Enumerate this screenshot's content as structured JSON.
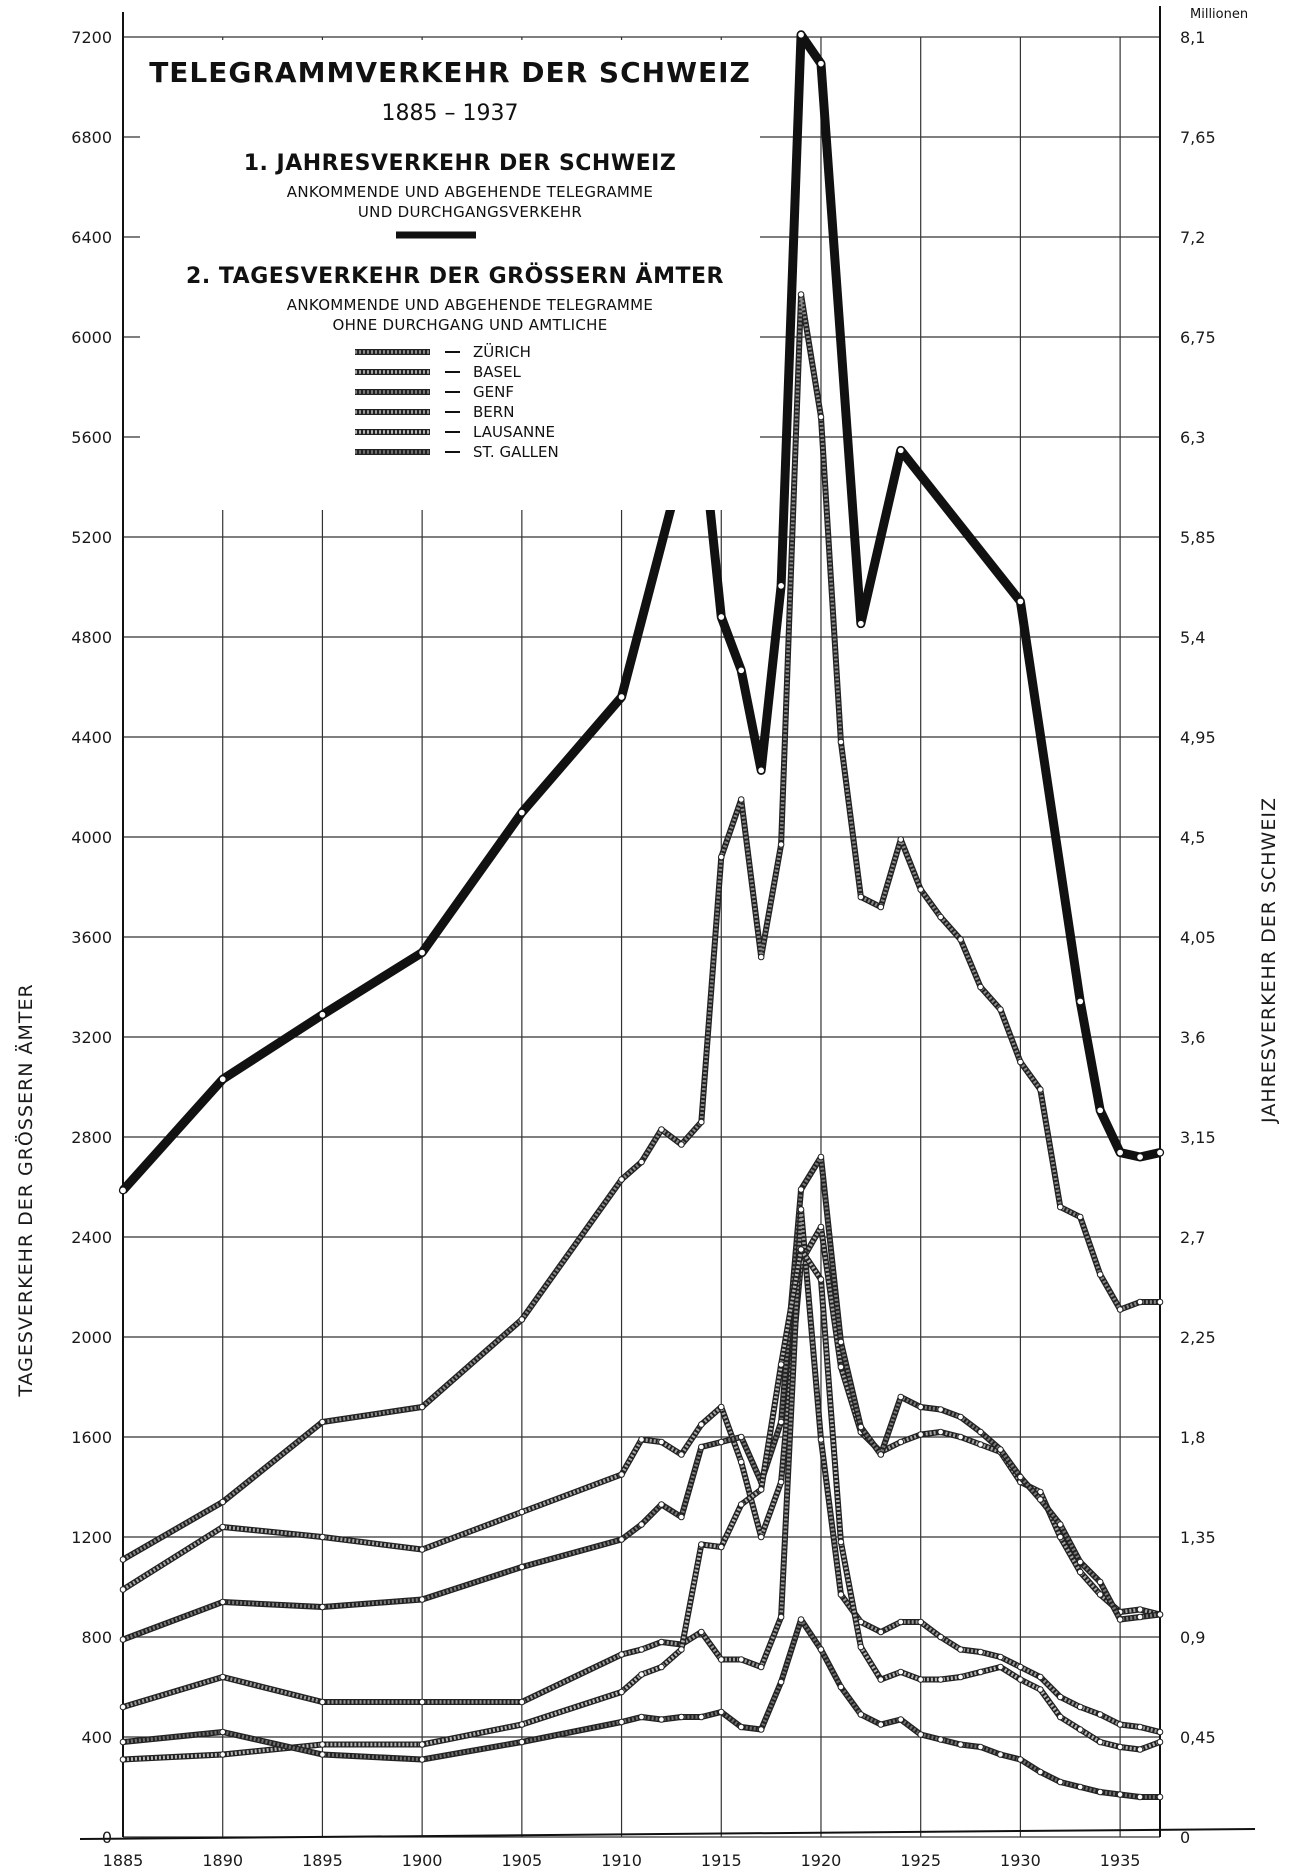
{
  "chart_data": {
    "type": "line",
    "title": "TELEGRAMMVERKEHR DER SCHWEIZ",
    "subtitle": "1885 – 1937",
    "heading_1": "1. JAHRESVERKEHR DER SCHWEIZ",
    "heading_1_desc_1": "ANKOMMENDE UND ABGEHENDE TELEGRAMME",
    "heading_1_desc_2": "UND DURCHGANGSVERKEHR",
    "heading_2": "2. TAGESVERKEHR DER GRÖSSERN ÄMTER",
    "heading_2_desc_1": "ANKOMMENDE UND ABGEHENDE TELEGRAMME",
    "heading_2_desc_2": "OHNE DURCHGANG UND AMTLICHE",
    "ylabel": "TAGESVERKEHR DER GRÖSSERN ÄMTER",
    "y2label": "JAHRESVERKEHR DER SCHWEIZ",
    "y2unit": "Millionen",
    "xlim": [
      1885,
      1937
    ],
    "ylim": [
      0,
      7200
    ],
    "y2lim": [
      0,
      8.1
    ],
    "grid": true,
    "x_ticks": [
      "1885",
      "1890",
      "1895",
      "1900",
      "1905",
      "1910",
      "1915",
      "1920",
      "1925",
      "1930",
      "1935"
    ],
    "y_ticks": [
      "0",
      "400",
      "800",
      "1200",
      "1600",
      "2000",
      "2400",
      "2800",
      "3200",
      "3600",
      "4000",
      "4400",
      "4800",
      "5200",
      "5600",
      "6000",
      "6400",
      "6800",
      "7200"
    ],
    "y2_ticks": [
      "0",
      "0,45",
      "0,9",
      "1,35",
      "1,8",
      "2,25",
      "2,7",
      "3,15",
      "3,6",
      "4,05",
      "4,5",
      "4,95",
      "5,4",
      "5,85",
      "6,3",
      "6,75",
      "7,2",
      "7,65",
      "8,1"
    ],
    "annual": {
      "name": "JAHRESVERKEHR DER SCHWEIZ",
      "axis": "right",
      "unit": "Millionen",
      "color": "#111111",
      "x": [
        1885,
        1890,
        1895,
        1900,
        1905,
        1910,
        1913,
        1914,
        1915,
        1916,
        1917,
        1918,
        1919,
        1920,
        1922,
        1924,
        1930,
        1933,
        1934,
        1935,
        1936,
        1937
      ],
      "y": [
        2.91,
        3.41,
        3.7,
        3.98,
        4.61,
        5.13,
        6.16,
        6.36,
        5.49,
        5.25,
        4.8,
        5.63,
        8.11,
        7.98,
        5.46,
        6.24,
        5.56,
        3.76,
        3.27,
        3.08,
        3.06,
        3.08
      ]
    },
    "series": [
      {
        "name": "ZÜRICH",
        "x": [
          1885,
          1890,
          1895,
          1900,
          1905,
          1910,
          1911,
          1912,
          1913,
          1914,
          1915,
          1916,
          1917,
          1918,
          1919,
          1920,
          1921,
          1922,
          1923,
          1924,
          1925,
          1926,
          1927,
          1928,
          1929,
          1930,
          1931,
          1932,
          1933,
          1934,
          1935,
          1936,
          1937
        ],
        "y": [
          1110,
          1340,
          1660,
          1720,
          2070,
          2630,
          2700,
          2830,
          2770,
          2860,
          3920,
          4150,
          3520,
          3970,
          6170,
          5680,
          4380,
          3760,
          3720,
          3990,
          3790,
          3680,
          3590,
          3400,
          3310,
          3100,
          2990,
          2520,
          2480,
          2250,
          2110,
          2140,
          2140
        ]
      },
      {
        "name": "BASEL",
        "x": [
          1885,
          1890,
          1895,
          1900,
          1905,
          1910,
          1911,
          1912,
          1913,
          1914,
          1915,
          1916,
          1917,
          1918,
          1919,
          1920,
          1921,
          1922,
          1923,
          1924,
          1925,
          1926,
          1927,
          1928,
          1929,
          1930,
          1931,
          1932,
          1933,
          1934,
          1935,
          1936,
          1937
        ],
        "y": [
          990,
          1240,
          1200,
          1150,
          1300,
          1450,
          1590,
          1580,
          1530,
          1650,
          1720,
          1500,
          1200,
          1420,
          2300,
          2440,
          1880,
          1620,
          1540,
          1580,
          1610,
          1620,
          1600,
          1570,
          1540,
          1420,
          1380,
          1200,
          1060,
          970,
          900,
          910,
          890
        ]
      },
      {
        "name": "GENF",
        "x": [
          1885,
          1890,
          1895,
          1900,
          1905,
          1910,
          1911,
          1912,
          1913,
          1914,
          1915,
          1916,
          1917,
          1918,
          1919,
          1920,
          1921,
          1922,
          1923,
          1924,
          1925,
          1926,
          1927,
          1928,
          1929,
          1930,
          1931,
          1932,
          1933,
          1934,
          1935,
          1936,
          1937
        ],
        "y": [
          790,
          940,
          920,
          950,
          1080,
          1190,
          1250,
          1330,
          1280,
          1560,
          1580,
          1600,
          1420,
          1660,
          2590,
          2720,
          1980,
          1640,
          1530,
          1760,
          1720,
          1710,
          1680,
          1620,
          1550,
          1440,
          1350,
          1250,
          1100,
          1020,
          870,
          880,
          890
        ]
      },
      {
        "name": "BERN",
        "x": [
          1885,
          1890,
          1895,
          1900,
          1905,
          1910,
          1911,
          1912,
          1913,
          1914,
          1915,
          1916,
          1917,
          1918,
          1919,
          1920,
          1921,
          1922,
          1923,
          1924,
          1925,
          1926,
          1927,
          1928,
          1929,
          1930,
          1931,
          1932,
          1933,
          1934,
          1935,
          1936,
          1937
        ],
        "y": [
          520,
          640,
          540,
          540,
          540,
          730,
          750,
          780,
          770,
          820,
          710,
          710,
          680,
          880,
          2510,
          1590,
          970,
          860,
          820,
          860,
          860,
          800,
          750,
          740,
          720,
          680,
          640,
          560,
          520,
          490,
          450,
          440,
          420
        ]
      },
      {
        "name": "LAUSANNE",
        "x": [
          1885,
          1890,
          1895,
          1900,
          1905,
          1910,
          1911,
          1912,
          1913,
          1914,
          1915,
          1916,
          1917,
          1918,
          1919,
          1920,
          1921,
          1922,
          1923,
          1924,
          1925,
          1926,
          1927,
          1928,
          1929,
          1930,
          1931,
          1932,
          1933,
          1934,
          1935,
          1936,
          1937
        ],
        "y": [
          310,
          330,
          370,
          370,
          450,
          580,
          650,
          680,
          750,
          1170,
          1160,
          1330,
          1390,
          1890,
          2350,
          2230,
          1180,
          760,
          630,
          660,
          630,
          630,
          640,
          660,
          680,
          630,
          590,
          480,
          430,
          380,
          360,
          350,
          380
        ]
      },
      {
        "name": "ST. GALLEN",
        "x": [
          1885,
          1890,
          1895,
          1900,
          1905,
          1910,
          1911,
          1912,
          1913,
          1914,
          1915,
          1916,
          1917,
          1918,
          1919,
          1920,
          1921,
          1922,
          1923,
          1924,
          1925,
          1926,
          1927,
          1928,
          1929,
          1930,
          1931,
          1932,
          1933,
          1934,
          1935,
          1936,
          1937
        ],
        "y": [
          380,
          420,
          330,
          310,
          380,
          460,
          480,
          470,
          480,
          480,
          500,
          440,
          430,
          620,
          870,
          750,
          600,
          490,
          450,
          470,
          410,
          390,
          370,
          360,
          330,
          310,
          260,
          220,
          200,
          180,
          170,
          160,
          160
        ]
      }
    ],
    "legend": [
      "ZÜRICH",
      "BASEL",
      "GENF",
      "BERN",
      "LAUSANNE",
      "ST. GALLEN"
    ],
    "legend_placement": "top-left inside plot, below headings"
  }
}
